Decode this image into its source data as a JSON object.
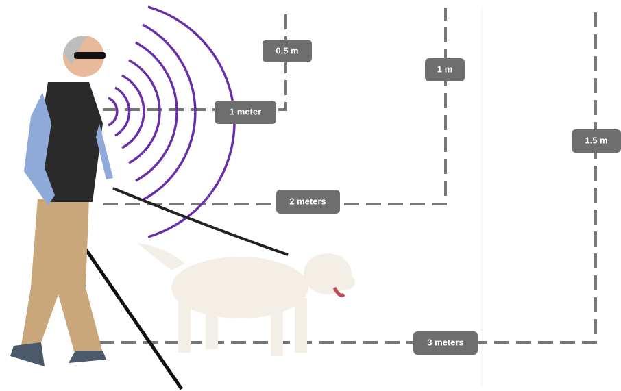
{
  "labels": [
    "0.5 m",
    "1 meter",
    "1 m",
    "2 meters",
    "1.5 m",
    "3 meters"
  ]
}
